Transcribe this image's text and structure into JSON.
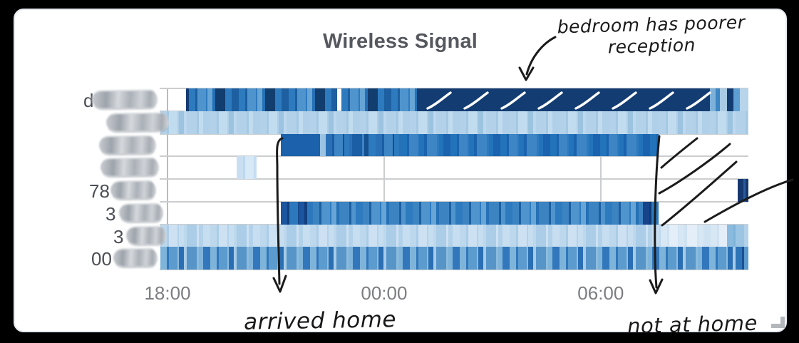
{
  "card": {
    "title": "Wireless Signal"
  },
  "chart_data": {
    "type": "heatmap",
    "title": "Wireless Signal",
    "description_visible": "per-device wireless signal strength over time; blue intensity encodes signal level; left device names are scribbled out",
    "x_axis": {
      "tick_labels": [
        "18:00",
        "00:00",
        "06:00"
      ],
      "tick_hours": [
        0,
        6,
        12
      ],
      "span_hours": 16.09,
      "start_label": "18:00"
    },
    "rows": [
      {
        "label_redacted": true,
        "label_visible_prefix": "d",
        "segments": [
          {
            "t0": 0.51,
            "t1": 0.59,
            "style": "solid",
            "color": "#133c72"
          },
          {
            "t0": 0.59,
            "t1": 4.69,
            "style": "striped",
            "palette": [
              "#2e7abf",
              "#1d5fa0",
              "#4f94cd",
              "#2e7abf",
              "#66a5d6",
              "#2570b6",
              "#123d6f",
              "#2e7abf"
            ]
          },
          {
            "t0": 4.81,
            "t1": 6.91,
            "style": "striped",
            "palette": [
              "#2e7abf",
              "#1d5fa0",
              "#4f94cd",
              "#2e7abf",
              "#66a5d6",
              "#2570b6",
              "#123d6f",
              "#2e7abf"
            ]
          },
          {
            "t0": 6.91,
            "t1": 15.03,
            "style": "solid",
            "color": "#133c72",
            "note": "poor-reception period, hand-marked with white slashes"
          },
          {
            "t0": 15.03,
            "t1": 15.19,
            "style": "solid",
            "color": "#7eb1da"
          },
          {
            "t0": 15.19,
            "t1": 15.31,
            "style": "solid",
            "color": "#3b86c4"
          },
          {
            "t0": 15.31,
            "t1": 15.49,
            "style": "solid",
            "color": "#a9cbe4"
          },
          {
            "t0": 15.49,
            "t1": 15.67,
            "style": "solid",
            "color": "#133c72"
          },
          {
            "t0": 15.67,
            "t1": 15.85,
            "style": "solid",
            "color": "#5d9fd3"
          },
          {
            "t0": 15.85,
            "t1": 16.09,
            "style": "solid",
            "color": "#b7d4ea"
          }
        ]
      },
      {
        "label_redacted": true,
        "label_visible_prefix": "",
        "segments": [
          {
            "t0": -0.2,
            "t1": 16.09,
            "style": "striped",
            "palette": [
              "#b3d2ea",
              "#a5c9e3",
              "#c2dcef",
              "#b0cfe8",
              "#9cc4e1",
              "#bcd7ee"
            ]
          }
        ]
      },
      {
        "label_redacted": true,
        "label_visible_prefix": "",
        "segments": [
          {
            "t0": 3.14,
            "t1": 4.22,
            "style": "solid",
            "color": "#1b61ab"
          },
          {
            "t0": 4.22,
            "t1": 4.38,
            "style": "solid",
            "color": "#9dc3e2"
          },
          {
            "t0": 4.38,
            "t1": 6.45,
            "style": "striped",
            "palette": [
              "#2a70b6",
              "#1b5ea5",
              "#3d85c4",
              "#15508f",
              "#2e7abf"
            ]
          },
          {
            "t0": 6.45,
            "t1": 13.61,
            "style": "striped",
            "palette": [
              "#2273ba",
              "#1b63ae",
              "#3d85c4",
              "#2e7abf"
            ]
          }
        ]
      },
      {
        "label_redacted": true,
        "label_visible_prefix": "",
        "segments": [
          {
            "t0": 1.91,
            "t1": 2.47,
            "style": "striped",
            "palette": [
              "#c9dff1",
              "#bcd7ee",
              "#d7e8f6",
              "#c3dbef"
            ]
          }
        ]
      },
      {
        "label_redacted": true,
        "label_visible_prefix": "78",
        "segments": [
          {
            "t0": 15.79,
            "t1": 15.96,
            "style": "solid",
            "color": "#16386f"
          },
          {
            "t0": 15.96,
            "t1": 16.01,
            "style": "solid",
            "color": "#2a5d9e"
          },
          {
            "t0": 16.01,
            "t1": 16.09,
            "style": "solid",
            "color": "#16386f"
          }
        ]
      },
      {
        "label_redacted": true,
        "label_visible_prefix": "3",
        "segments": [
          {
            "t0": 3.14,
            "t1": 4.02,
            "style": "striped",
            "palette": [
              "#1b55a0",
              "#123e7c",
              "#2d78bd",
              "#174a8c"
            ]
          },
          {
            "t0": 4.02,
            "t1": 13.16,
            "style": "striped",
            "palette": [
              "#3c83c2",
              "#1d5fa0",
              "#4f94cd",
              "#2e7abf",
              "#66a5d6",
              "#2570b6"
            ]
          },
          {
            "t0": 13.16,
            "t1": 13.6,
            "style": "striped",
            "palette": [
              "#16438a",
              "#0f3a74",
              "#2e7abf",
              "#12386b"
            ]
          }
        ]
      },
      {
        "label_redacted": true,
        "label_visible_prefix": "3",
        "segments": [
          {
            "t0": -0.2,
            "t1": 13.66,
            "style": "striped",
            "palette": [
              "#bdd8ec",
              "#abcde7",
              "#cde1f2",
              "#b3d2ea",
              "#c6def0"
            ]
          },
          {
            "t0": 13.66,
            "t1": 15.49,
            "style": "striped",
            "palette": [
              "#d8e7f4",
              "#cfe2f1",
              "#e4eef8",
              "#d2e4f3"
            ]
          },
          {
            "t0": 15.49,
            "t1": 15.98,
            "style": "striped",
            "palette": [
              "#8abadd",
              "#7fb4da",
              "#9cc5e4",
              "#86b8db"
            ]
          },
          {
            "t0": 15.98,
            "t1": 16.09,
            "style": "solid",
            "color": "#b3d2ea"
          }
        ]
      },
      {
        "label_redacted": true,
        "label_visible_prefix": "00",
        "segments": [
          {
            "t0": -0.2,
            "t1": 15.73,
            "style": "striped",
            "palette": [
              "#7fb4da",
              "#3277bb",
              "#5b9bce",
              "#8cbbdd",
              "#2a6fb4",
              "#a7cbe6",
              "#5795c9",
              "#8cbbdd"
            ]
          },
          {
            "t0": 15.73,
            "t1": 16.09,
            "style": "striped",
            "palette": [
              "#2e74b8",
              "#1b4f94",
              "#5b9bce",
              "#2a6fb4"
            ]
          }
        ]
      }
    ],
    "annotations": [
      {
        "id": "bedroom",
        "lines": [
          "bedroom has poorer",
          "reception"
        ],
        "target": "row 1 dark band"
      },
      {
        "id": "arrived",
        "text": "arrived home",
        "target": "vertical mark near 21:00"
      },
      {
        "id": "nothome",
        "text": "not at home",
        "target": "vertical mark near 07:40 and slashes over empty rows"
      }
    ],
    "hand_marks": {
      "white_slash_count": 8,
      "black_slash_count": 4
    }
  }
}
